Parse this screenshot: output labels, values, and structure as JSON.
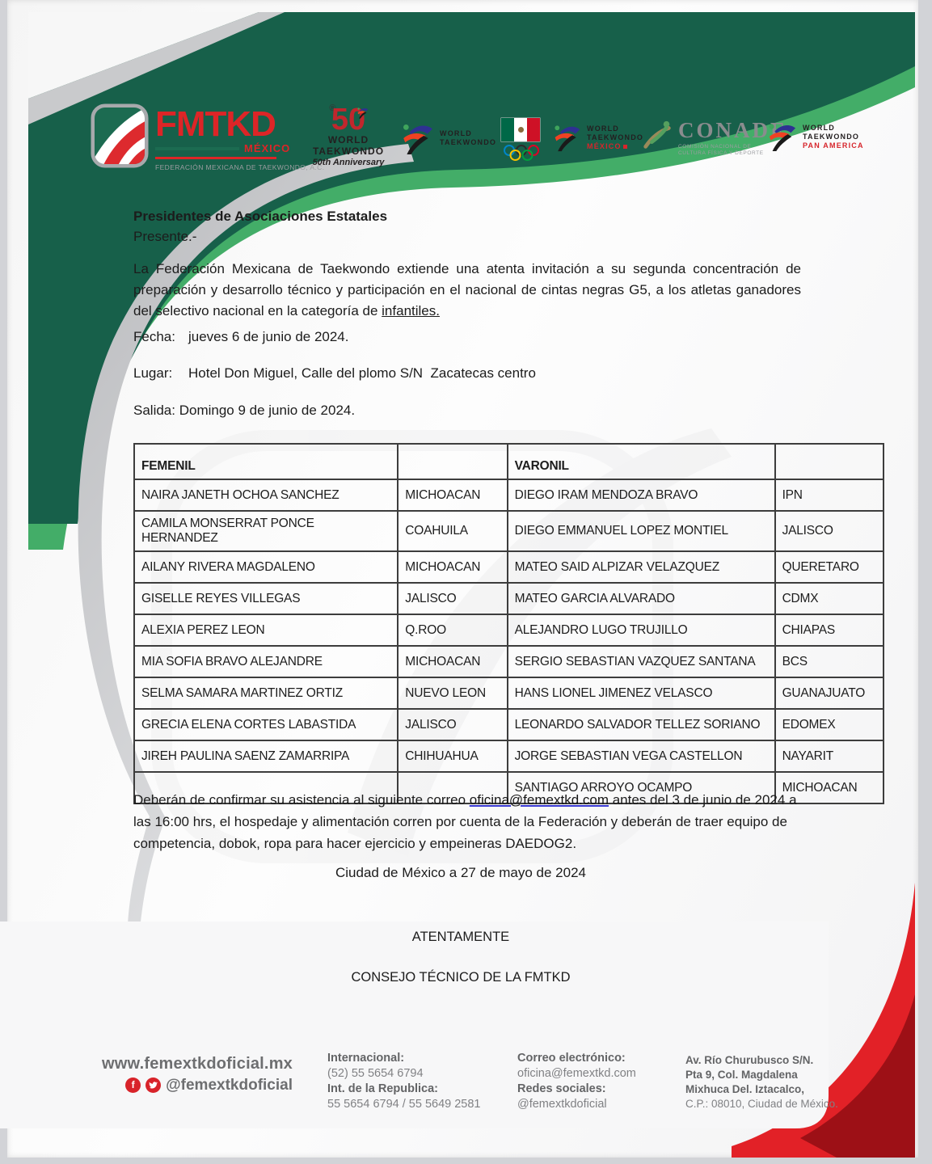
{
  "colors": {
    "green_dark": "#17604a",
    "green_light": "#43ad68",
    "silver": "#c3c4c7",
    "red": "#e22127",
    "red_dark": "#9d1016",
    "brand_red": "#dd2527",
    "link_underline": "#3b3bd4"
  },
  "header": {
    "fmtkd": {
      "wordmark": "FMTKD",
      "registered": "®",
      "country": "MÉXICO",
      "subtitle": "FEDERACIÓN MEXICANA DE TAEKWONDO, A.C."
    },
    "anniversary": {
      "number": "50",
      "line1": "WORLD",
      "line2": "TAEKWONDO",
      "line3": "50th Anniversary"
    },
    "wt": {
      "line1": "WORLD",
      "line2": "TAEKWONDO"
    },
    "wt_mexico": {
      "line1": "WORLD",
      "line2": "TAEKWONDO",
      "line3": "MÉXICO"
    },
    "conade": {
      "name": "CONADE",
      "sub1": "COMISIÓN NACIONAL DE",
      "sub2": "CULTURA FÍSICA Y DEPORTE"
    },
    "wt_panam": {
      "line1": "WORLD",
      "line2": "TAEKWONDO",
      "line3": "PAN AMERICA"
    }
  },
  "letter": {
    "recipient": "Presidentes de Asociaciones Estatales",
    "salutation": "Presente.-",
    "intro_text": "La Federación Mexicana de Taekwondo extiende una atenta invitación a su segunda concentración de preparación y desarrollo técnico y participación en el nacional de cintas negras G5, a los atletas ganadores del selectivo nacional en la categoría de ",
    "intro_underlined": "infantiles.",
    "fields": [
      {
        "label": "Fecha:",
        "value": "jueves 6 de junio de 2024."
      },
      {
        "label": "Lugar:",
        "value": "Hotel Don Miguel, Calle del plomo S/N  Zacatecas centro"
      },
      {
        "label": "Salida:",
        "value": "Domingo 9 de junio de 2024."
      }
    ],
    "confirm_before_link": "Deberán de confirmar su asistencia al siguiente correo ",
    "confirm_link": "oficina@femextkd.com",
    "confirm_after_link": " antes del 3 de junio de 2024 a las 16:00 hrs, el hospedaje y alimentación corren por cuenta de la Federación y deberán de traer equipo de competencia, dobok, ropa para hacer ejercicio y empeineras DAEDOG2.",
    "dateline": "Ciudad de México a 27 de mayo de 2024",
    "closing": "ATENTAMENTE",
    "signer": "CONSEJO TÉCNICO DE LA FMTKD"
  },
  "table": {
    "headers": [
      "FEMENIL",
      "",
      "VARONIL",
      ""
    ],
    "rows": [
      [
        "NAIRA JANETH OCHOA SANCHEZ",
        "MICHOACAN",
        "DIEGO IRAM MENDOZA BRAVO",
        "IPN"
      ],
      [
        "CAMILA MONSERRAT PONCE HERNANDEZ",
        "COAHUILA",
        "DIEGO EMMANUEL LOPEZ MONTIEL",
        "JALISCO"
      ],
      [
        "AILANY RIVERA MAGDALENO",
        "MICHOACAN",
        "MATEO SAID ALPIZAR VELAZQUEZ",
        "QUERETARO"
      ],
      [
        "GISELLE REYES VILLEGAS",
        "JALISCO",
        "MATEO GARCIA ALVARADO",
        "CDMX"
      ],
      [
        "ALEXIA PEREZ LEON",
        "Q.ROO",
        "ALEJANDRO LUGO TRUJILLO",
        "CHIAPAS"
      ],
      [
        "MIA SOFIA BRAVO ALEJANDRE",
        "MICHOACAN",
        "SERGIO SEBASTIAN VAZQUEZ SANTANA",
        "BCS"
      ],
      [
        "SELMA SAMARA MARTINEZ ORTIZ",
        "NUEVO LEON",
        "HANS LIONEL JIMENEZ VELASCO",
        "GUANAJUATO"
      ],
      [
        "GRECIA ELENA CORTES LABASTIDA",
        "JALISCO",
        "LEONARDO SALVADOR TELLEZ SORIANO",
        "EDOMEX"
      ],
      [
        "JIREH PAULINA SAENZ ZAMARRIPA",
        "CHIHUAHUA",
        "JORGE SEBASTIAN VEGA CASTELLON",
        "NAYARIT"
      ],
      [
        "",
        "",
        "SANTIAGO ARROYO OCAMPO",
        "MICHOACAN"
      ]
    ]
  },
  "footer": {
    "website": "www.femextkdoficial.mx",
    "social_handle": "@femextkdoficial",
    "phones": {
      "label1": "Internacional:",
      "value1": "(52) 55 5654 6794",
      "label2": "Int. de la Republica:",
      "value2": "55 5654 6794 / 55 5649 2581"
    },
    "contact": {
      "label1": "Correo electrónico:",
      "value1": "oficina@femextkd.com",
      "label2": "Redes sociales:",
      "value2": "@femextkdoficial"
    },
    "address": {
      "line1": "Av. Río Churubusco S/N.",
      "line2": "Pta 9, Col. Magdalena",
      "line3": "Mixhuca Del. Iztacalco,",
      "line4": "C.P.: 08010, Ciudad de México."
    }
  }
}
